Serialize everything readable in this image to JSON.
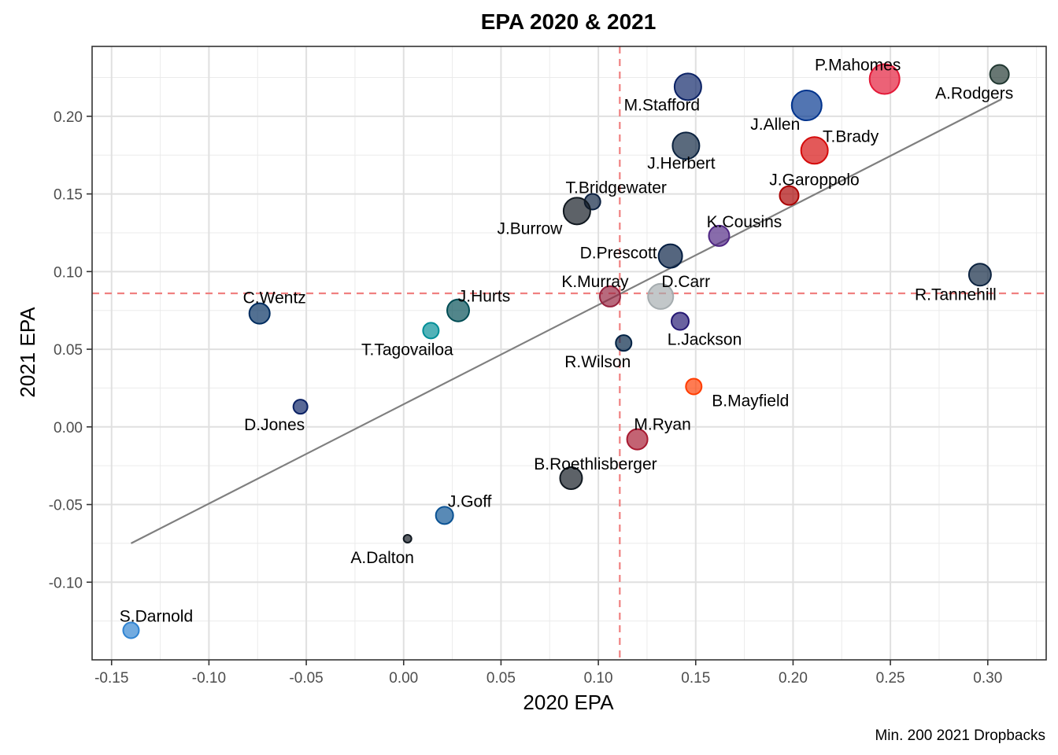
{
  "chart_data": {
    "type": "scatter",
    "title": "EPA 2020 & 2021",
    "xlabel": "2020 EPA",
    "ylabel": "2021 EPA",
    "caption": "Min. 200 2021 Dropbacks",
    "xlim": [
      -0.16,
      0.33
    ],
    "ylim": [
      -0.15,
      0.245
    ],
    "x_ticks": [
      -0.15,
      -0.1,
      -0.05,
      0.0,
      0.05,
      0.1,
      0.15,
      0.2,
      0.25,
      0.3
    ],
    "y_ticks": [
      -0.1,
      -0.05,
      0.0,
      0.05,
      0.1,
      0.15,
      0.2
    ],
    "x_tick_labels": [
      "-0.15",
      "-0.10",
      "-0.05",
      "0.00",
      "0.05",
      "0.10",
      "0.15",
      "0.20",
      "0.25",
      "0.30"
    ],
    "y_tick_labels": [
      "-0.10",
      "-0.05",
      "0.00",
      "0.05",
      "0.10",
      "0.15",
      "0.20"
    ],
    "grid": true,
    "vline_x": 0.111,
    "hline_y": 0.086,
    "trend_line": {
      "x": [
        -0.14,
        0.307
      ],
      "y": [
        -0.075,
        0.211
      ]
    },
    "reference_color": "#f08080",
    "points": [
      {
        "name": "P.Mahomes",
        "x": 0.247,
        "y": 0.224,
        "size": 19,
        "color": "#e31837"
      },
      {
        "name": "A.Rodgers",
        "x": 0.306,
        "y": 0.227,
        "size": 12,
        "color": "#203731"
      },
      {
        "name": "M.Stafford",
        "x": 0.146,
        "y": 0.219,
        "size": 17,
        "color": "#0b2265"
      },
      {
        "name": "J.Allen",
        "x": 0.207,
        "y": 0.207,
        "size": 19,
        "color": "#00338d"
      },
      {
        "name": "T.Brady",
        "x": 0.211,
        "y": 0.178,
        "size": 17,
        "color": "#d50a0a"
      },
      {
        "name": "J.Herbert",
        "x": 0.145,
        "y": 0.181,
        "size": 17,
        "color": "#0c2340"
      },
      {
        "name": "J.Garoppolo",
        "x": 0.198,
        "y": 0.149,
        "size": 12,
        "color": "#aa0000"
      },
      {
        "name": "T.Bridgewater",
        "x": 0.097,
        "y": 0.145,
        "size": 10,
        "color": "#0b2040"
      },
      {
        "name": "J.Burrow",
        "x": 0.089,
        "y": 0.139,
        "size": 17,
        "color": "#101820"
      },
      {
        "name": "K.Cousins",
        "x": 0.162,
        "y": 0.123,
        "size": 13,
        "color": "#4f2683"
      },
      {
        "name": "D.Prescott",
        "x": 0.137,
        "y": 0.11,
        "size": 15,
        "color": "#041e42"
      },
      {
        "name": "R.Tannehill",
        "x": 0.296,
        "y": 0.098,
        "size": 14,
        "color": "#0c2340"
      },
      {
        "name": "K.Murray",
        "x": 0.106,
        "y": 0.084,
        "size": 13,
        "color": "#97233f"
      },
      {
        "name": "D.Carr",
        "x": 0.132,
        "y": 0.084,
        "size": 16,
        "color": "#a5acaf"
      },
      {
        "name": "C.Wentz",
        "x": -0.074,
        "y": 0.073,
        "size": 13,
        "color": "#002c5f"
      },
      {
        "name": "J.Hurts",
        "x": 0.028,
        "y": 0.075,
        "size": 14,
        "color": "#004c54"
      },
      {
        "name": "T.Tagovailoa",
        "x": 0.014,
        "y": 0.062,
        "size": 10,
        "color": "#008e97"
      },
      {
        "name": "L.Jackson",
        "x": 0.142,
        "y": 0.068,
        "size": 11,
        "color": "#241773"
      },
      {
        "name": "R.Wilson",
        "x": 0.113,
        "y": 0.054,
        "size": 10,
        "color": "#002244"
      },
      {
        "name": "B.Mayfield",
        "x": 0.149,
        "y": 0.026,
        "size": 10,
        "color": "#ff3c00"
      },
      {
        "name": "D.Jones",
        "x": -0.053,
        "y": 0.013,
        "size": 9,
        "color": "#0b2265"
      },
      {
        "name": "M.Ryan",
        "x": 0.12,
        "y": -0.008,
        "size": 13,
        "color": "#a71930"
      },
      {
        "name": "B.Roethlisberger",
        "x": 0.086,
        "y": -0.033,
        "size": 14,
        "color": "#101820"
      },
      {
        "name": "J.Goff",
        "x": 0.021,
        "y": -0.057,
        "size": 11,
        "color": "#0b5394"
      },
      {
        "name": "A.Dalton",
        "x": 0.002,
        "y": -0.072,
        "size": 5,
        "color": "#101820"
      },
      {
        "name": "S.Darnold",
        "x": -0.14,
        "y": -0.131,
        "size": 10,
        "color": "#2f83d1"
      }
    ]
  }
}
